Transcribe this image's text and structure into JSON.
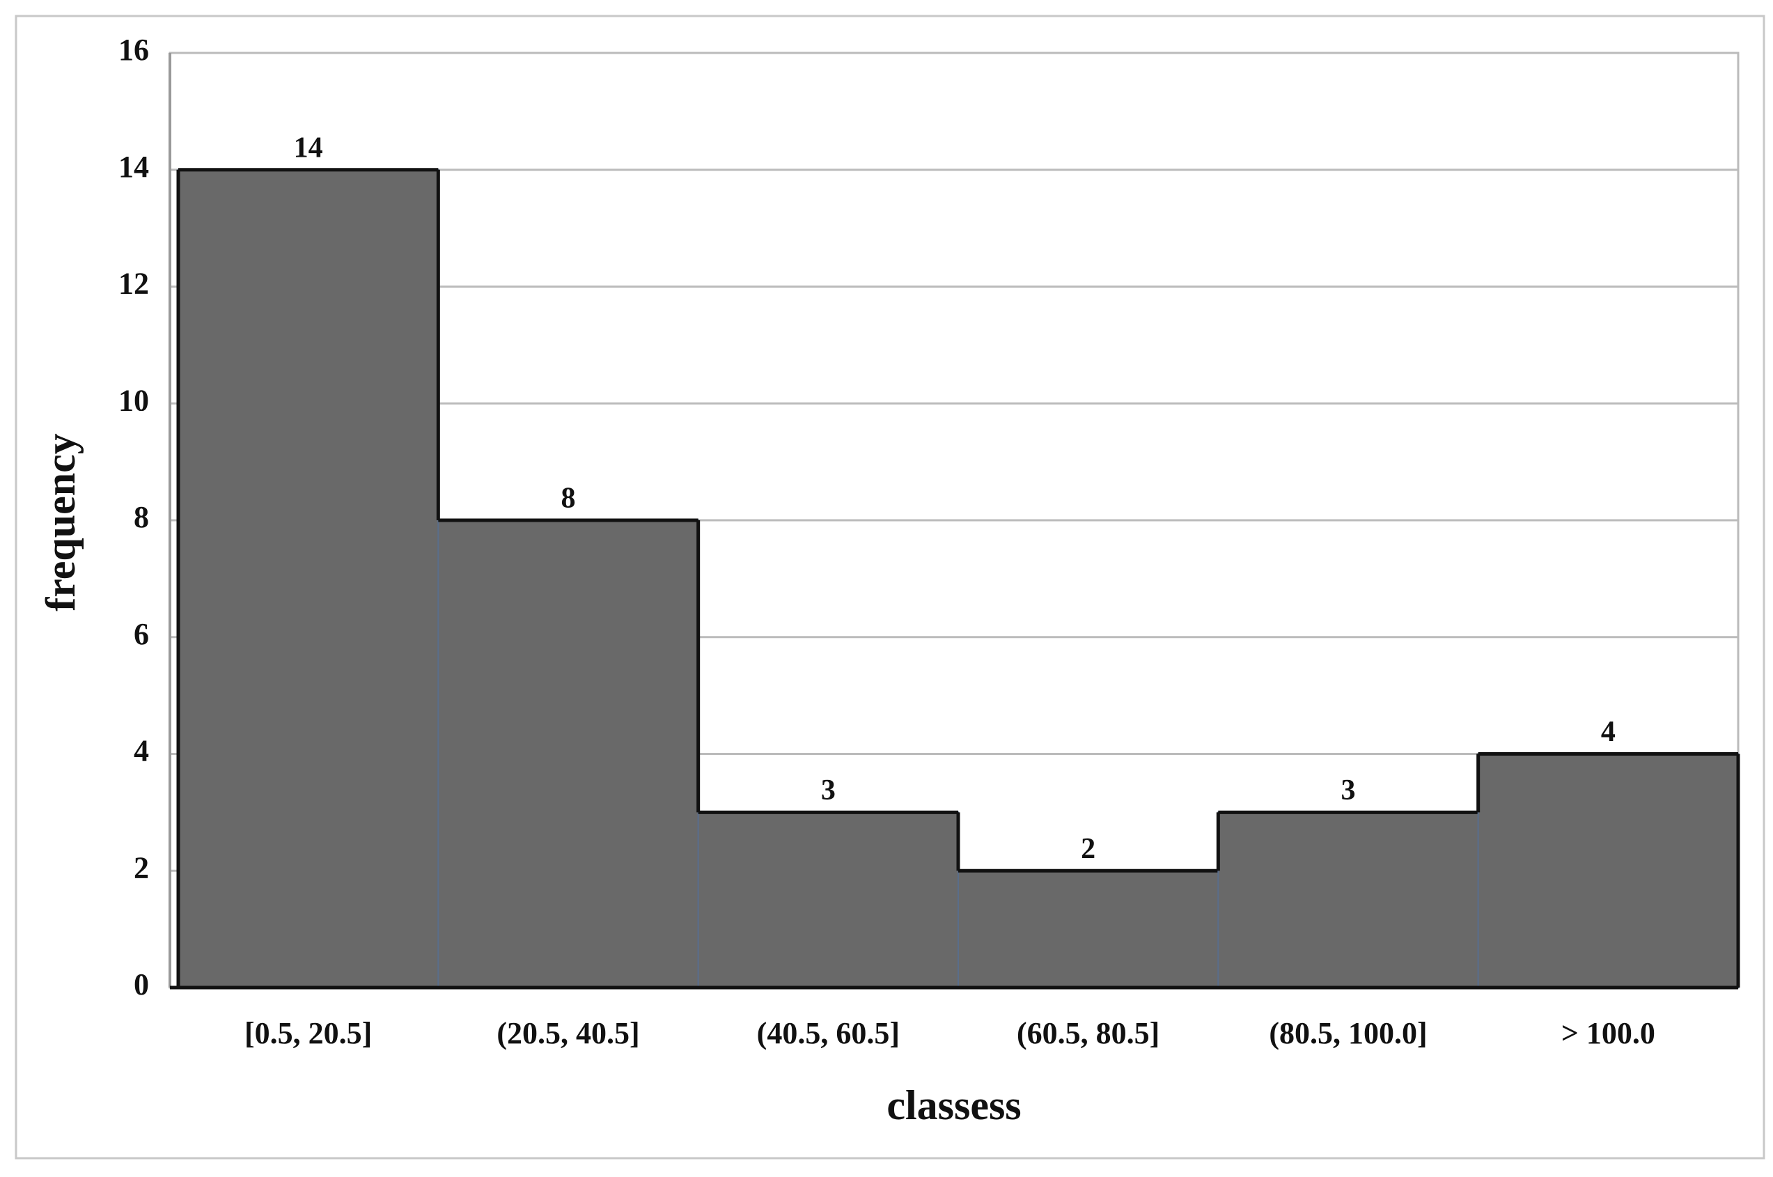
{
  "chart_data": {
    "type": "bar",
    "x_label": "classess",
    "y_label": "frequency",
    "categories": [
      "[0.5, 20.5]",
      "(20.5, 40.5]",
      "(40.5, 60.5]",
      "(60.5, 80.5]",
      "(80.5, 100.0]",
      "> 100.0"
    ],
    "values": [
      14,
      8,
      3,
      2,
      3,
      4
    ],
    "color": "#696969",
    "ylim": [
      0,
      16
    ],
    "yticks": [
      0,
      2,
      4,
      6,
      8,
      10,
      12,
      14,
      16
    ],
    "grid": true
  }
}
